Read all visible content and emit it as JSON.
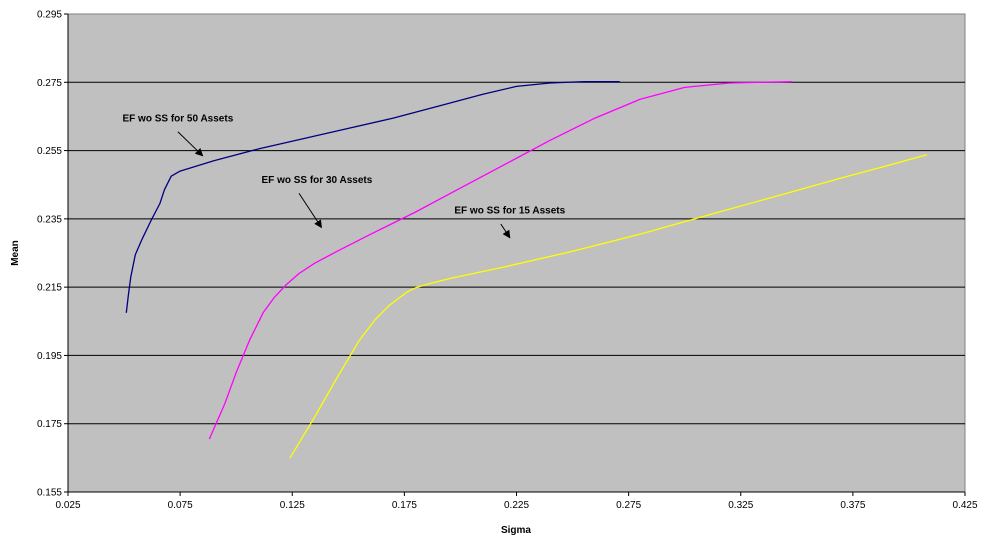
{
  "chart_data": {
    "type": "line",
    "title": "",
    "xlabel": "Sigma",
    "ylabel": "Mean",
    "xlim": [
      0.025,
      0.425
    ],
    "ylim": [
      0.155,
      0.295
    ],
    "xticks": [
      "0.025",
      "0.075",
      "0.125",
      "0.175",
      "0.225",
      "0.275",
      "0.325",
      "0.375",
      "0.425"
    ],
    "yticks": [
      "0.155",
      "0.175",
      "0.195",
      "0.215",
      "0.235",
      "0.255",
      "0.275",
      "0.295"
    ],
    "grid": "horizontal",
    "plot_background": "#c0c0c0",
    "series": [
      {
        "color": "#000080",
        "x": [
          0.051,
          0.052,
          0.053,
          0.055,
          0.058,
          0.062,
          0.066,
          0.068,
          0.071,
          0.075,
          0.09,
          0.11,
          0.13,
          0.15,
          0.17,
          0.19,
          0.21,
          0.225,
          0.24,
          0.255,
          0.271
        ],
        "y": [
          0.2075,
          0.213,
          0.218,
          0.2245,
          0.229,
          0.2345,
          0.2395,
          0.2435,
          0.2475,
          0.249,
          0.252,
          0.2555,
          0.2585,
          0.2615,
          0.2645,
          0.268,
          0.2715,
          0.2738,
          0.2748,
          0.2752,
          0.2752
        ]
      },
      {
        "color": "#ff00ff",
        "x": [
          0.088,
          0.095,
          0.1,
          0.106,
          0.112,
          0.117,
          0.122,
          0.128,
          0.135,
          0.145,
          0.16,
          0.18,
          0.2,
          0.22,
          0.24,
          0.26,
          0.28,
          0.3,
          0.32,
          0.348
        ],
        "y": [
          0.1705,
          0.181,
          0.19,
          0.1995,
          0.2075,
          0.212,
          0.2155,
          0.219,
          0.222,
          0.2255,
          0.2305,
          0.237,
          0.244,
          0.251,
          0.258,
          0.2645,
          0.27,
          0.2735,
          0.2748,
          0.2752
        ]
      },
      {
        "color": "#ffff00",
        "x": [
          0.124,
          0.135,
          0.145,
          0.155,
          0.162,
          0.168,
          0.172,
          0.176,
          0.18,
          0.185,
          0.195,
          0.22,
          0.25,
          0.28,
          0.31,
          0.34,
          0.37,
          0.39,
          0.408
        ],
        "y": [
          0.165,
          0.177,
          0.1885,
          0.1995,
          0.2055,
          0.2095,
          0.2115,
          0.2135,
          0.2148,
          0.2158,
          0.2175,
          0.221,
          0.2255,
          0.2305,
          0.236,
          0.2415,
          0.247,
          0.2505,
          0.2538
        ]
      }
    ],
    "annotations": [
      {
        "text": "EF wo SS for 50 Assets",
        "label_x": 0.074,
        "label_y": 0.2635,
        "arrow_from": [
          0.074,
          0.2605
        ],
        "arrow_to": [
          0.085,
          0.2535
        ]
      },
      {
        "text": "EF wo SS for 30 Assets",
        "label_x": 0.136,
        "label_y": 0.2455,
        "arrow_from": [
          0.128,
          0.2425
        ],
        "arrow_to": [
          0.138,
          0.2325
        ]
      },
      {
        "text": "EF wo SS for 15 Assets",
        "label_x": 0.222,
        "label_y": 0.2365,
        "arrow_from": [
          0.218,
          0.2335
        ],
        "arrow_to": [
          0.222,
          0.2295
        ]
      }
    ]
  }
}
